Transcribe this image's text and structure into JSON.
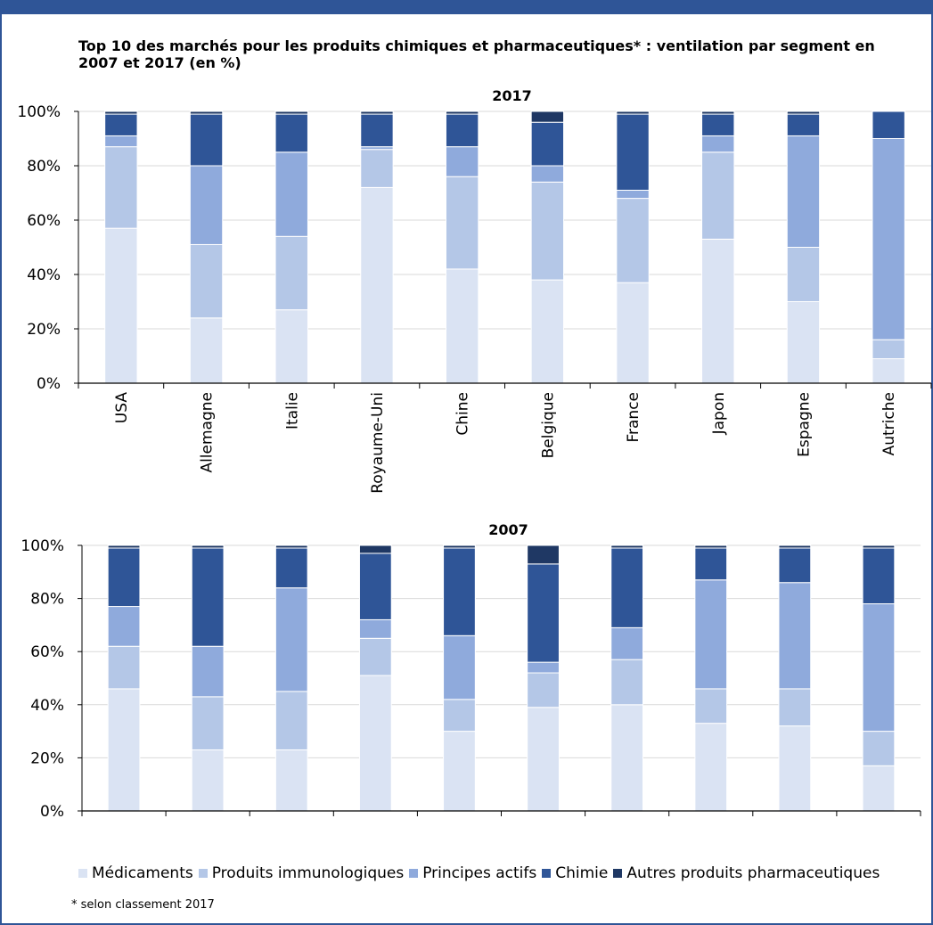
{
  "title": "Top 10 des marchés pour les produits chimiques et pharmaceutiques* : ventilation par segment en 2007 et 2017 (en %)",
  "footnote": "* selon classement 2017",
  "chart_data": [
    {
      "type": "bar",
      "stacked": true,
      "title": "2017",
      "categories": [
        "USA",
        "Allemagne",
        "Italie",
        "Royaume-Uni",
        "Chine",
        "Belgique",
        "France",
        "Japon",
        "Espagne",
        "Autriche"
      ],
      "series": [
        {
          "name": "Médicaments",
          "color": "#dae3f3",
          "values": [
            57,
            24,
            27,
            72,
            42,
            38,
            37,
            53,
            30,
            9
          ]
        },
        {
          "name": "Produits immunologiques",
          "color": "#b4c7e7",
          "values": [
            30,
            27,
            27,
            14,
            34,
            36,
            31,
            32,
            20,
            7
          ]
        },
        {
          "name": "Principes actifs",
          "color": "#8faadc",
          "values": [
            4,
            29,
            31,
            1,
            11,
            6,
            3,
            6,
            41,
            74
          ]
        },
        {
          "name": "Chimie",
          "color": "#2f5597",
          "values": [
            8,
            19,
            14,
            12,
            12,
            16,
            28,
            8,
            8,
            10
          ]
        },
        {
          "name": "Autres produits pharmaceutiques",
          "color": "#1f3864",
          "values": [
            1,
            1,
            1,
            1,
            1,
            4,
            1,
            1,
            1,
            0
          ]
        }
      ],
      "yticks": [
        "0%",
        "20%",
        "40%",
        "60%",
        "80%",
        "100%"
      ],
      "ylim": [
        0,
        100
      ],
      "show_category_labels": true
    },
    {
      "type": "bar",
      "stacked": true,
      "title": "2007",
      "categories": [
        "USA",
        "Allemagne",
        "Italie",
        "Royaume-Uni",
        "Chine",
        "Belgique",
        "France",
        "Japon",
        "Espagne",
        "Autriche"
      ],
      "series": [
        {
          "name": "Médicaments",
          "color": "#dae3f3",
          "values": [
            46,
            23,
            23,
            51,
            30,
            39,
            40,
            33,
            32,
            17
          ]
        },
        {
          "name": "Produits immunologiques",
          "color": "#b4c7e7",
          "values": [
            16,
            20,
            22,
            14,
            12,
            13,
            17,
            13,
            14,
            13
          ]
        },
        {
          "name": "Principes actifs",
          "color": "#8faadc",
          "values": [
            15,
            19,
            39,
            7,
            24,
            4,
            12,
            41,
            40,
            48
          ]
        },
        {
          "name": "Chimie",
          "color": "#2f5597",
          "values": [
            22,
            37,
            15,
            25,
            33,
            37,
            30,
            12,
            13,
            21
          ]
        },
        {
          "name": "Autres produits pharmaceutiques",
          "color": "#1f3864",
          "values": [
            1,
            1,
            1,
            3,
            1,
            7,
            1,
            1,
            1,
            1
          ]
        }
      ],
      "yticks": [
        "0%",
        "20%",
        "40%",
        "60%",
        "80%",
        "100%"
      ],
      "ylim": [
        0,
        100
      ],
      "show_category_labels": false
    }
  ],
  "legend": [
    {
      "label": "Médicaments",
      "color": "#dae3f3"
    },
    {
      "label": "Produits immunologiques",
      "color": "#b4c7e7"
    },
    {
      "label": "Principes actifs",
      "color": "#8faadc"
    },
    {
      "label": "Chimie",
      "color": "#2f5597"
    },
    {
      "label": "Autres produits pharmaceutiques",
      "color": "#1f3864"
    }
  ]
}
